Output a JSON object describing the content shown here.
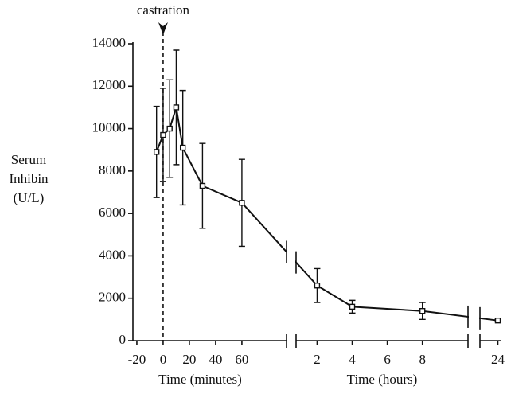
{
  "chart_data": {
    "type": "line",
    "ylabel": [
      "Serum",
      "Inhibin",
      "(U/L)"
    ],
    "ylim": [
      0,
      14000
    ],
    "yticks": [
      0,
      2000,
      4000,
      6000,
      8000,
      10000,
      12000,
      14000
    ],
    "color": "#111111",
    "segments": [
      {
        "xlabel": "Time (minutes)",
        "xlim": [
          -23,
          94
        ],
        "xticks": [
          -20,
          0,
          20,
          40,
          60
        ],
        "x": [
          -5,
          0,
          5,
          10,
          15,
          30,
          60
        ],
        "values": [
          8900,
          9700,
          10000,
          11000,
          9100,
          7300,
          6500
        ],
        "errors": [
          2150,
          2200,
          2300,
          2700,
          2700,
          2000,
          2050
        ],
        "annotation": {
          "text": "castration",
          "x": 0
        }
      },
      {
        "xlabel": "Time (hours)",
        "xlim": [
          0.8,
          10.6
        ],
        "xticks": [
          2,
          4,
          6,
          8
        ],
        "x": [
          2,
          4,
          8
        ],
        "values": [
          2600,
          1600,
          1400
        ],
        "errors": [
          800,
          300,
          400
        ]
      },
      {
        "xlim": [
          23,
          24.2
        ],
        "xticks": [
          24
        ],
        "x": [
          24
        ],
        "values": [
          950
        ],
        "errors": [
          50
        ]
      }
    ]
  }
}
